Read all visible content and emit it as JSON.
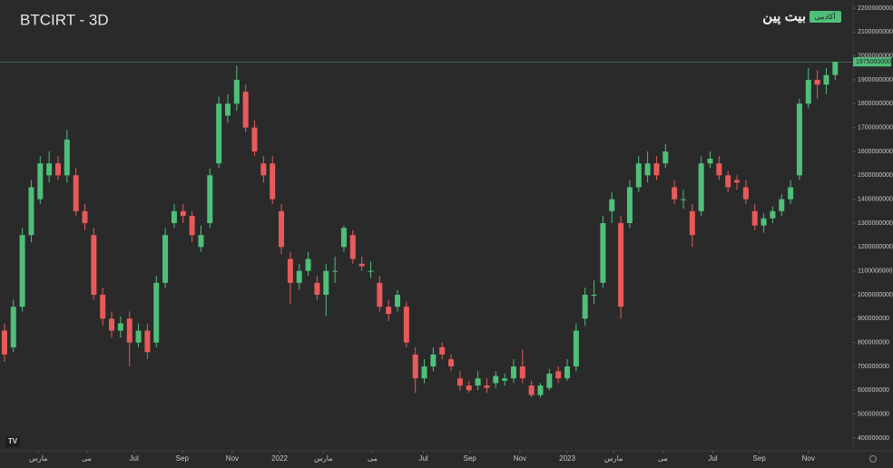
{
  "chart_data": {
    "type": "candlestick",
    "title": "BTCIRT - 3D",
    "brand": "بیت پین",
    "brand_badge": "آکادمی",
    "last_price": 1975000000,
    "up_color": "#4fbf7a",
    "down_color": "#e85a5a",
    "open": [
      850000000,
      780000000,
      950000000,
      1250000000,
      1400000000,
      1500000000,
      1550000000,
      1500000000,
      1500000000,
      1350000000,
      1250000000,
      1000000000,
      900000000,
      850000000,
      900000000,
      800000000,
      850000000,
      800000000,
      1050000000,
      1300000000,
      1350000000,
      1330000000,
      1200000000,
      1300000000,
      1550000000,
      1750000000,
      1800000000,
      1850000000,
      1700000000,
      1550000000,
      1550000000,
      1350000000,
      1150000000,
      1050000000,
      1100000000,
      1050000000,
      1000000000,
      1100000000,
      1200000000,
      1250000000,
      1130000000,
      1100000000,
      1050000000,
      950000000,
      950000000,
      950000000,
      750000000,
      650000000,
      700000000,
      780000000,
      730000000,
      650000000,
      620000000,
      620000000,
      620000000,
      630000000,
      640000000,
      650000000,
      700000000,
      620000000,
      580000000,
      610000000,
      680000000,
      650000000,
      700000000,
      900000000,
      1000000000,
      1050000000,
      1350000000,
      1300000000,
      1300000000,
      1450000000,
      1500000000,
      1550000000,
      1550000000,
      1450000000,
      1400000000,
      1350000000,
      1350000000,
      1550000000,
      1550000000,
      1500000000,
      1480000000,
      1450000000,
      1350000000,
      1290000000,
      1320000000,
      1350000000,
      1400000000,
      1500000000,
      1800000000,
      1900000000,
      1880000000,
      1920000000
    ],
    "high": [
      880000000,
      980000000,
      1280000000,
      1480000000,
      1580000000,
      1600000000,
      1580000000,
      1690000000,
      1530000000,
      1380000000,
      1280000000,
      1030000000,
      930000000,
      910000000,
      930000000,
      880000000,
      880000000,
      1080000000,
      1280000000,
      1380000000,
      1380000000,
      1350000000,
      1290000000,
      1530000000,
      1830000000,
      1840000000,
      1960000000,
      1880000000,
      1730000000,
      1580000000,
      1580000000,
      1380000000,
      1180000000,
      1130000000,
      1180000000,
      1080000000,
      1130000000,
      1160000000,
      1290000000,
      1270000000,
      1160000000,
      1140000000,
      1080000000,
      980000000,
      1020000000,
      970000000,
      780000000,
      730000000,
      780000000,
      800000000,
      750000000,
      680000000,
      640000000,
      680000000,
      650000000,
      680000000,
      670000000,
      730000000,
      770000000,
      640000000,
      630000000,
      690000000,
      700000000,
      730000000,
      880000000,
      1030000000,
      1060000000,
      1330000000,
      1430000000,
      1330000000,
      1480000000,
      1580000000,
      1600000000,
      1580000000,
      1630000000,
      1480000000,
      1440000000,
      1380000000,
      1580000000,
      1600000000,
      1580000000,
      1520000000,
      1500000000,
      1480000000,
      1380000000,
      1340000000,
      1370000000,
      1420000000,
      1480000000,
      1820000000,
      1950000000,
      1940000000,
      1950000000,
      1975000000
    ],
    "low": [
      720000000,
      760000000,
      930000000,
      1220000000,
      1380000000,
      1470000000,
      1480000000,
      1470000000,
      1330000000,
      1270000000,
      980000000,
      870000000,
      820000000,
      820000000,
      700000000,
      780000000,
      730000000,
      780000000,
      1030000000,
      1280000000,
      1300000000,
      1220000000,
      1180000000,
      1280000000,
      1530000000,
      1720000000,
      1770000000,
      1680000000,
      1580000000,
      1470000000,
      1380000000,
      1170000000,
      960000000,
      1020000000,
      1080000000,
      980000000,
      910000000,
      1050000000,
      1180000000,
      1130000000,
      1100000000,
      1070000000,
      930000000,
      890000000,
      930000000,
      780000000,
      590000000,
      630000000,
      680000000,
      730000000,
      680000000,
      600000000,
      590000000,
      600000000,
      590000000,
      610000000,
      620000000,
      630000000,
      630000000,
      570000000,
      570000000,
      600000000,
      630000000,
      640000000,
      680000000,
      870000000,
      960000000,
      1030000000,
      1300000000,
      900000000,
      1280000000,
      1430000000,
      1470000000,
      1480000000,
      1530000000,
      1380000000,
      1360000000,
      1200000000,
      1330000000,
      1530000000,
      1480000000,
      1430000000,
      1440000000,
      1380000000,
      1270000000,
      1260000000,
      1300000000,
      1330000000,
      1380000000,
      1480000000,
      1780000000,
      1820000000,
      1840000000,
      1900000000
    ],
    "close": [
      750000000,
      950000000,
      1250000000,
      1450000000,
      1550000000,
      1550000000,
      1500000000,
      1650000000,
      1350000000,
      1300000000,
      1000000000,
      900000000,
      850000000,
      880000000,
      800000000,
      850000000,
      760000000,
      1050000000,
      1250000000,
      1350000000,
      1330000000,
      1250000000,
      1250000000,
      1500000000,
      1800000000,
      1800000000,
      1900000000,
      1700000000,
      1600000000,
      1500000000,
      1400000000,
      1200000000,
      1050000000,
      1100000000,
      1150000000,
      1000000000,
      1100000000,
      1100000000,
      1280000000,
      1150000000,
      1120000000,
      1100000000,
      950000000,
      920000000,
      1000000000,
      800000000,
      650000000,
      700000000,
      750000000,
      750000000,
      700000000,
      620000000,
      600000000,
      650000000,
      610000000,
      660000000,
      650000000,
      700000000,
      650000000,
      580000000,
      620000000,
      670000000,
      650000000,
      700000000,
      850000000,
      1000000000,
      1000000000,
      1300000000,
      1400000000,
      950000000,
      1450000000,
      1550000000,
      1550000000,
      1500000000,
      1600000000,
      1400000000,
      1400000000,
      1250000000,
      1550000000,
      1570000000,
      1500000000,
      1450000000,
      1470000000,
      1400000000,
      1290000000,
      1320000000,
      1350000000,
      1400000000,
      1450000000,
      1800000000,
      1900000000,
      1880000000,
      1920000000,
      1975000000
    ],
    "xlim": [
      -0.5,
      95
    ],
    "xticks": [
      {
        "value": 3.8,
        "label": "مارس"
      },
      {
        "value": 9.2,
        "label": "می"
      },
      {
        "value": 14.5,
        "label": "Jul"
      },
      {
        "value": 19.9,
        "label": "Sep"
      },
      {
        "value": 25.5,
        "label": "Nov"
      },
      {
        "value": 30.8,
        "label": "2022"
      },
      {
        "value": 35.7,
        "label": "مارس"
      },
      {
        "value": 41.2,
        "label": "می"
      },
      {
        "value": 46.9,
        "label": "Jul"
      },
      {
        "value": 52.1,
        "label": "Sep"
      },
      {
        "value": 57.7,
        "label": "Nov"
      },
      {
        "value": 63,
        "label": "2023"
      },
      {
        "value": 68.2,
        "label": "مارس"
      },
      {
        "value": 73.7,
        "label": "می"
      },
      {
        "value": 79.3,
        "label": "Jul"
      },
      {
        "value": 84.5,
        "label": "Sep"
      },
      {
        "value": 90,
        "label": "Nov"
      }
    ],
    "ylim": [
      400000000,
      2200000000
    ],
    "yticks": [
      400000000,
      500000000,
      600000000,
      700000000,
      800000000,
      900000000,
      1000000000,
      1100000000,
      1200000000,
      1300000000,
      1400000000,
      1500000000,
      1600000000,
      1700000000,
      1800000000,
      1900000000,
      2000000000,
      2100000000,
      2200000000
    ]
  }
}
